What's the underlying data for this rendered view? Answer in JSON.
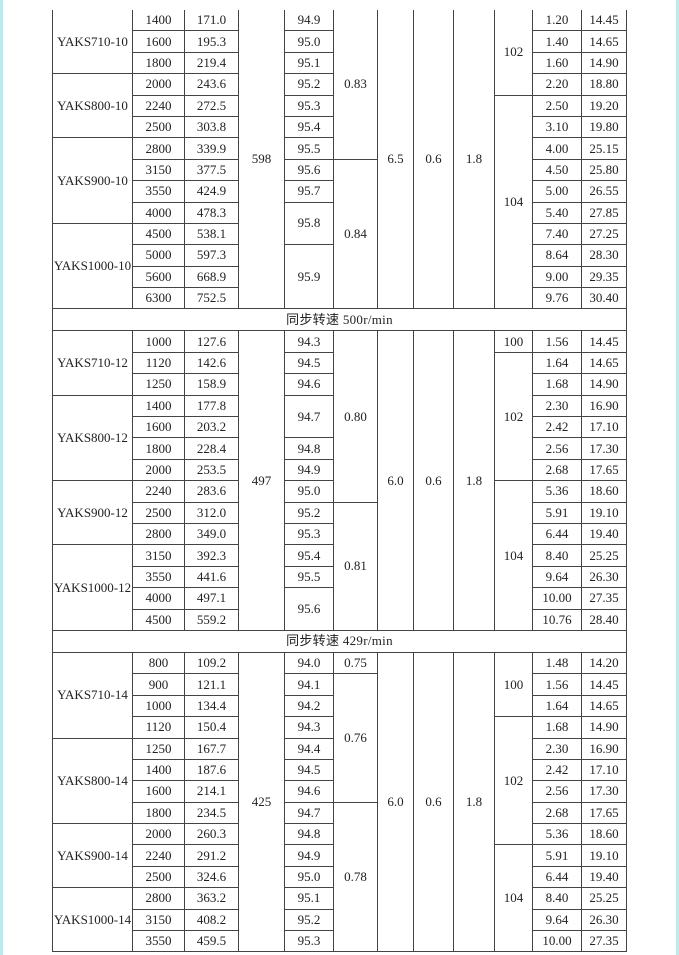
{
  "sections": [
    {
      "header": "",
      "columns": [
        [
          [
            "YAKS710-10",
            3
          ],
          [
            "YAKS800-10",
            3
          ],
          [
            "YAKS900-10",
            4
          ],
          [
            "YAKS1000-10",
            4
          ]
        ],
        [
          "1400",
          "1600",
          "1800",
          "2000",
          "2240",
          "2500",
          "2800",
          "3150",
          "3550",
          "4000",
          "4500",
          "5000",
          "5600",
          "6300"
        ],
        [
          "171.0",
          "195.3",
          "219.4",
          "243.6",
          "272.5",
          "303.8",
          "339.9",
          "377.5",
          "424.9",
          "478.3",
          "538.1",
          "597.3",
          "668.9",
          "752.5"
        ],
        [
          [
            "598",
            14
          ]
        ],
        [
          "94.9",
          "95.0",
          "95.1",
          "95.2",
          "95.3",
          "95.4",
          "95.5",
          "95.6",
          "95.7",
          [
            "95.8",
            2
          ],
          [
            "95.9",
            3
          ]
        ],
        [
          [
            "0.83",
            7
          ],
          [
            "0.84",
            7
          ]
        ],
        [
          [
            "6.5",
            14
          ]
        ],
        [
          [
            "0.6",
            14
          ]
        ],
        [
          [
            "1.8",
            14
          ]
        ],
        [
          [
            "102",
            4
          ],
          [
            "104",
            10
          ]
        ],
        [
          "1.20",
          "1.40",
          "1.60",
          "2.20",
          "2.50",
          "3.10",
          "4.00",
          "4.50",
          "5.00",
          "5.40",
          "7.40",
          "8.64",
          "9.00",
          "9.76"
        ],
        [
          "14.45",
          "14.65",
          "14.90",
          "18.80",
          "19.20",
          "19.80",
          "25.15",
          "25.80",
          "26.55",
          "27.85",
          "27.25",
          "28.30",
          "29.35",
          "30.40"
        ]
      ]
    },
    {
      "header": "同步转速  500r/min",
      "columns": [
        [
          [
            "YAKS710-12",
            3
          ],
          [
            "YAKS800-12",
            4
          ],
          [
            "YAKS900-12",
            3
          ],
          [
            "YAKS1000-12",
            4
          ]
        ],
        [
          "1000",
          "1120",
          "1250",
          "1400",
          "1600",
          "1800",
          "2000",
          "2240",
          "2500",
          "2800",
          "3150",
          "3550",
          "4000",
          "4500"
        ],
        [
          "127.6",
          "142.6",
          "158.9",
          "177.8",
          "203.2",
          "228.4",
          "253.5",
          "283.6",
          "312.0",
          "349.0",
          "392.3",
          "441.6",
          "497.1",
          "559.2"
        ],
        [
          [
            "497",
            14
          ]
        ],
        [
          "94.3",
          "94.5",
          "94.6",
          [
            "94.7",
            2
          ],
          "94.8",
          "94.9",
          "95.0",
          "95.2",
          "95.3",
          "95.4",
          "95.5",
          [
            "95.6",
            2
          ]
        ],
        [
          [
            "0.80",
            8
          ],
          [
            "0.81",
            6
          ]
        ],
        [
          [
            "6.0",
            14
          ]
        ],
        [
          [
            "0.6",
            14
          ]
        ],
        [
          [
            "1.8",
            14
          ]
        ],
        [
          [
            "100",
            1
          ],
          [
            "102",
            6
          ],
          [
            "104",
            7
          ]
        ],
        [
          "1.56",
          "1.64",
          "1.68",
          "2.30",
          "2.42",
          "2.56",
          "2.68",
          "5.36",
          "5.91",
          "6.44",
          "8.40",
          "9.64",
          "10.00",
          "10.76"
        ],
        [
          "14.45",
          "14.65",
          "14.90",
          "16.90",
          "17.10",
          "17.30",
          "17.65",
          "18.60",
          "19.10",
          "19.40",
          "25.25",
          "26.30",
          "27.35",
          "28.40"
        ]
      ]
    },
    {
      "header": "同步转速  429r/min",
      "columns": [
        [
          [
            "YAKS710-14",
            4
          ],
          [
            "YAKS800-14",
            4
          ],
          [
            "YAKS900-14",
            3
          ],
          [
            "YAKS1000-14",
            3
          ]
        ],
        [
          "800",
          "900",
          "1000",
          "1120",
          "1250",
          "1400",
          "1600",
          "1800",
          "2000",
          "2240",
          "2500",
          "2800",
          "3150",
          "3550"
        ],
        [
          "109.2",
          "121.1",
          "134.4",
          "150.4",
          "167.7",
          "187.6",
          "214.1",
          "234.5",
          "260.3",
          "291.2",
          "324.6",
          "363.2",
          "408.2",
          "459.5"
        ],
        [
          [
            "425",
            14
          ]
        ],
        [
          "94.0",
          "94.1",
          "94.2",
          "94.3",
          "94.4",
          "94.5",
          "94.6",
          "94.7",
          "94.8",
          "94.9",
          "95.0",
          "95.1",
          "95.2",
          "95.3"
        ],
        [
          [
            "0.75",
            1
          ],
          [
            "0.76",
            6
          ],
          [
            "0.78",
            7
          ]
        ],
        [
          [
            "6.0",
            14
          ]
        ],
        [
          [
            "0.6",
            14
          ]
        ],
        [
          [
            "1.8",
            14
          ]
        ],
        [
          [
            "100",
            3
          ],
          [
            "102",
            6
          ],
          [
            "104",
            5
          ]
        ],
        [
          "1.48",
          "1.56",
          "1.64",
          "1.68",
          "2.30",
          "2.42",
          "2.56",
          "2.68",
          "5.36",
          "5.91",
          "6.44",
          "8.40",
          "9.64",
          "10.00"
        ],
        [
          "14.20",
          "14.45",
          "14.65",
          "14.90",
          "16.90",
          "17.10",
          "17.30",
          "17.65",
          "18.60",
          "19.10",
          "19.40",
          "25.25",
          "26.30",
          "27.35"
        ]
      ]
    }
  ]
}
